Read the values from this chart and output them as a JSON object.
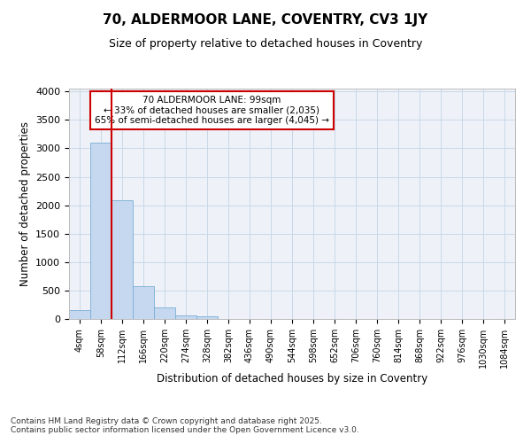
{
  "title1": "70, ALDERMOOR LANE, COVENTRY, CV3 1JY",
  "title2": "Size of property relative to detached houses in Coventry",
  "xlabel": "Distribution of detached houses by size in Coventry",
  "ylabel": "Number of detached properties",
  "bar_labels": [
    "4sqm",
    "58sqm",
    "112sqm",
    "166sqm",
    "220sqm",
    "274sqm",
    "328sqm",
    "382sqm",
    "436sqm",
    "490sqm",
    "544sqm",
    "598sqm",
    "652sqm",
    "706sqm",
    "760sqm",
    "814sqm",
    "868sqm",
    "922sqm",
    "976sqm",
    "1030sqm",
    "1084sqm"
  ],
  "bar_values": [
    160,
    3100,
    2080,
    580,
    210,
    70,
    50,
    0,
    0,
    0,
    0,
    0,
    0,
    0,
    0,
    0,
    0,
    0,
    0,
    0,
    0
  ],
  "bar_color": "#c5d8ef",
  "bar_edge_color": "#7aaed4",
  "vline_color": "#cc0000",
  "ylim": [
    0,
    4050
  ],
  "yticks": [
    0,
    500,
    1000,
    1500,
    2000,
    2500,
    3000,
    3500,
    4000
  ],
  "annotation_title": "70 ALDERMOOR LANE: 99sqm",
  "annotation_line1": "← 33% of detached houses are smaller (2,035)",
  "annotation_line2": "65% of semi-detached houses are larger (4,045) →",
  "annotation_box_color": "#cc0000",
  "grid_color": "#c8d8e8",
  "bg_color": "#eef2f8",
  "footer1": "Contains HM Land Registry data © Crown copyright and database right 2025.",
  "footer2": "Contains public sector information licensed under the Open Government Licence v3.0."
}
